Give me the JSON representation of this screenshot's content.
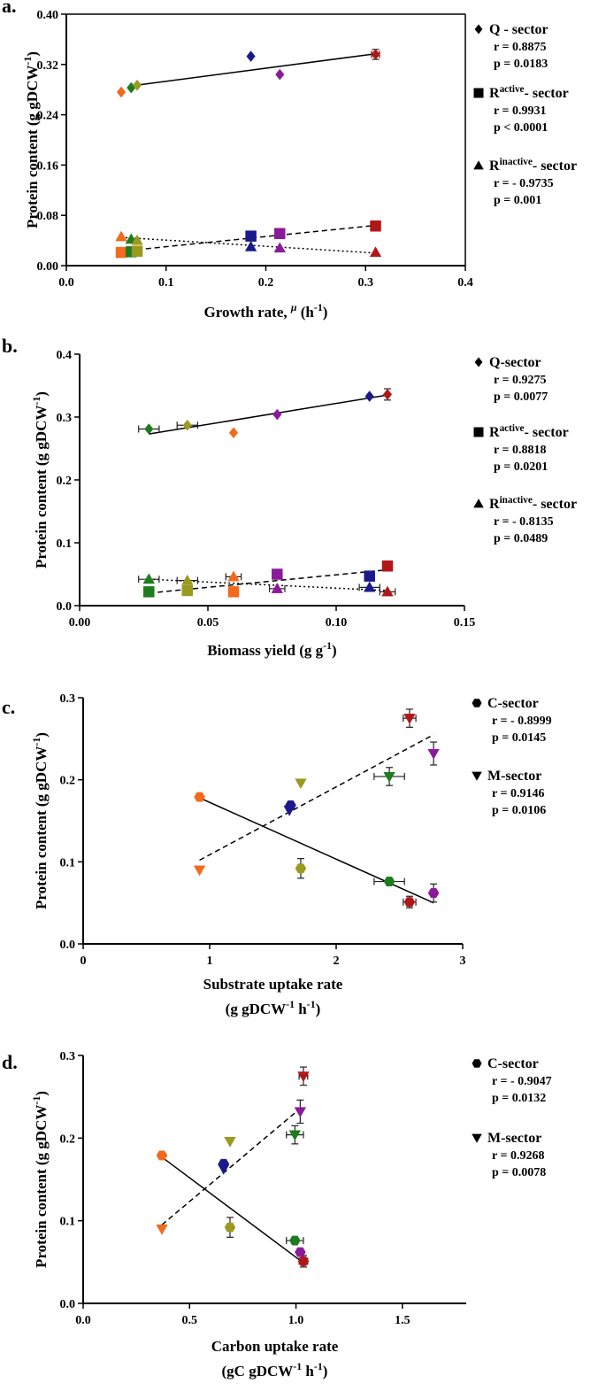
{
  "chart_data": [
    {
      "type": "scatter",
      "panel_label": "a.",
      "xlabel": "Growth rate, μ (h⁻¹)",
      "xlabel_parts": [
        "Growth rate, ",
        "μ",
        " (h",
        "-1",
        ")"
      ],
      "ylabel_parts": [
        "Protein content (g gDCW",
        "-1",
        ")"
      ],
      "xlim": [
        0,
        0.4
      ],
      "ylim": [
        0,
        0.4
      ],
      "xticks": [
        "0.0",
        "0.1",
        "0.2",
        "0.3",
        "0.4"
      ],
      "yticks": [
        "0.00",
        "0.08",
        "0.16",
        "0.24",
        "0.32",
        "0.40"
      ],
      "xtick_values": [
        0,
        0.1,
        0.2,
        0.3,
        0.4
      ],
      "ytick_values": [
        0,
        0.08,
        0.16,
        0.24,
        0.32,
        0.4
      ],
      "series": [
        {
          "name": "Q - sector",
          "marker": "diamond",
          "line": "solid",
          "fit": [
            [
              0.07,
              0.287
            ],
            [
              0.31,
              0.337
            ]
          ],
          "points": [
            {
              "x": 0.055,
              "y": 0.276,
              "color": "#F26A1B"
            },
            {
              "x": 0.065,
              "y": 0.283,
              "color": "#1E7B1E"
            },
            {
              "x": 0.071,
              "y": 0.287,
              "color": "#9A9A1E"
            },
            {
              "x": 0.185,
              "y": 0.333,
              "color": "#1A1A8C"
            },
            {
              "x": 0.214,
              "y": 0.304,
              "color": "#8B1A9A"
            },
            {
              "x": 0.31,
              "y": 0.336,
              "color": "#B01818",
              "xerr": 0.004,
              "yerr": 0.008
            }
          ]
        },
        {
          "name": "R - active sector",
          "marker": "square",
          "line": "dashed",
          "fit": [
            [
              0.062,
              0.024
            ],
            [
              0.31,
              0.064
            ]
          ],
          "points": [
            {
              "x": 0.055,
              "y": 0.021,
              "color": "#F26A1B"
            },
            {
              "x": 0.065,
              "y": 0.022,
              "color": "#1E7B1E"
            },
            {
              "x": 0.071,
              "y": 0.023,
              "color": "#9A9A1E"
            },
            {
              "x": 0.185,
              "y": 0.047,
              "color": "#1A1A8C"
            },
            {
              "x": 0.214,
              "y": 0.051,
              "color": "#8B1A9A"
            },
            {
              "x": 0.31,
              "y": 0.063,
              "color": "#B01818"
            }
          ]
        },
        {
          "name": "R - inactive sector",
          "marker": "triangle",
          "line": "dotted",
          "fit": [
            [
              0.055,
              0.045
            ],
            [
              0.31,
              0.02
            ]
          ],
          "points": [
            {
              "x": 0.055,
              "y": 0.046,
              "color": "#F26A1B"
            },
            {
              "x": 0.065,
              "y": 0.042,
              "color": "#1E7B1E"
            },
            {
              "x": 0.071,
              "y": 0.04,
              "color": "#9A9A1E"
            },
            {
              "x": 0.185,
              "y": 0.03,
              "color": "#1A1A8C"
            },
            {
              "x": 0.214,
              "y": 0.028,
              "color": "#8B1A9A"
            },
            {
              "x": 0.31,
              "y": 0.021,
              "color": "#B01818"
            }
          ]
        }
      ],
      "legend": [
        {
          "marker": "diamond",
          "name_parts": [
            "Q - sector"
          ],
          "r": "r = 0.8875",
          "p": "p = 0.0183"
        },
        {
          "marker": "square",
          "name_parts": [
            "R",
            "active",
            "- sector"
          ],
          "r": "r = 0.9931",
          "p": "p < 0.0001"
        },
        {
          "marker": "triangle",
          "name_parts": [
            "R",
            "inactive",
            "- sector"
          ],
          "r": "r = - 0.9735",
          "p": "p = 0.001"
        }
      ]
    },
    {
      "type": "scatter",
      "panel_label": "b.",
      "xlabel": "Biomass yield (g g⁻¹)",
      "xlabel_parts": [
        "Biomass yield (g g",
        "-1",
        ")"
      ],
      "ylabel_parts": [
        "Protein content (g gDCW",
        "-1",
        ")"
      ],
      "xlim": [
        0,
        0.15
      ],
      "ylim": [
        0,
        0.4
      ],
      "xticks": [
        "0.00",
        "0.05",
        "0.10",
        "0.15"
      ],
      "yticks": [
        "0.0",
        "0.1",
        "0.2",
        "0.3",
        "0.4"
      ],
      "xtick_values": [
        0,
        0.05,
        0.1,
        0.15
      ],
      "ytick_values": [
        0,
        0.1,
        0.2,
        0.3,
        0.4
      ],
      "series": [
        {
          "name": "Q-sector",
          "marker": "diamond",
          "line": "solid",
          "fit": [
            [
              0.027,
              0.273
            ],
            [
              0.12,
              0.335
            ]
          ],
          "points": [
            {
              "x": 0.027,
              "y": 0.281,
              "color": "#1E7B1E",
              "xerr": 0.004
            },
            {
              "x": 0.042,
              "y": 0.287,
              "color": "#9A9A1E",
              "xerr": 0.004
            },
            {
              "x": 0.06,
              "y": 0.275,
              "color": "#F26A1B"
            },
            {
              "x": 0.077,
              "y": 0.304,
              "color": "#8B1A9A"
            },
            {
              "x": 0.113,
              "y": 0.333,
              "color": "#1A1A8C"
            },
            {
              "x": 0.12,
              "y": 0.336,
              "color": "#B01818",
              "yerr": 0.009
            }
          ]
        },
        {
          "name": "R - active sector",
          "marker": "square",
          "line": "dashed",
          "fit": [
            [
              0.027,
              0.02
            ],
            [
              0.12,
              0.057
            ]
          ],
          "points": [
            {
              "x": 0.027,
              "y": 0.022,
              "color": "#1E7B1E"
            },
            {
              "x": 0.042,
              "y": 0.024,
              "color": "#9A9A1E"
            },
            {
              "x": 0.06,
              "y": 0.022,
              "color": "#F26A1B"
            },
            {
              "x": 0.077,
              "y": 0.05,
              "color": "#8B1A9A"
            },
            {
              "x": 0.113,
              "y": 0.047,
              "color": "#1A1A8C"
            },
            {
              "x": 0.12,
              "y": 0.063,
              "color": "#B01818"
            }
          ]
        },
        {
          "name": "R - inactive sector",
          "marker": "triangle",
          "line": "dotted",
          "fit": [
            [
              0.027,
              0.042
            ],
            [
              0.12,
              0.024
            ]
          ],
          "points": [
            {
              "x": 0.027,
              "y": 0.042,
              "color": "#1E7B1E",
              "xerr": 0.004
            },
            {
              "x": 0.042,
              "y": 0.04,
              "color": "#9A9A1E",
              "xerr": 0.004
            },
            {
              "x": 0.06,
              "y": 0.046,
              "color": "#F26A1B",
              "xerr": 0.003
            },
            {
              "x": 0.077,
              "y": 0.027,
              "color": "#8B1A9A",
              "xerr": 0.003
            },
            {
              "x": 0.113,
              "y": 0.029,
              "color": "#1A1A8C",
              "xerr": 0.004
            },
            {
              "x": 0.12,
              "y": 0.022,
              "color": "#B01818",
              "xerr": 0.003
            }
          ]
        }
      ],
      "legend": [
        {
          "marker": "diamond",
          "name_parts": [
            "Q-sector"
          ],
          "r": "r = 0.9275",
          "p": "p = 0.0077"
        },
        {
          "marker": "square",
          "name_parts": [
            "R",
            "active",
            "- sector"
          ],
          "r": "r = 0.8818",
          "p": "p = 0.0201"
        },
        {
          "marker": "triangle",
          "name_parts": [
            "R",
            "inactive",
            "- sector"
          ],
          "r": "r = - 0.8135",
          "p": "p = 0.0489"
        }
      ]
    },
    {
      "type": "scatter",
      "panel_label": "c.",
      "xlabel": "Substrate uptake rate (g gDCW⁻¹ h⁻¹)",
      "xlabel_parts": [
        "Substrate uptake rate"
      ],
      "xlabel2_parts": [
        "(g gDCW",
        "-1",
        " h",
        "-1",
        ")"
      ],
      "ylabel_parts": [
        "Protein content (g gDCW",
        "-1",
        ")"
      ],
      "xlim": [
        0,
        3
      ],
      "ylim": [
        0,
        0.3
      ],
      "xticks": [
        "0",
        "1",
        "2",
        "3"
      ],
      "yticks": [
        "0.0",
        "0.1",
        "0.2",
        "0.3"
      ],
      "xtick_values": [
        0,
        1,
        2,
        3
      ],
      "ytick_values": [
        0,
        0.1,
        0.2,
        0.3
      ],
      "series": [
        {
          "name": "C-sector",
          "marker": "hexagon",
          "line": "solid",
          "fit": [
            [
              0.92,
              0.178
            ],
            [
              2.77,
              0.05
            ]
          ],
          "points": [
            {
              "x": 0.92,
              "y": 0.179,
              "color": "#F26A1B"
            },
            {
              "x": 1.64,
              "y": 0.169,
              "color": "#1A1A8C"
            },
            {
              "x": 1.72,
              "y": 0.092,
              "color": "#9A9A1E",
              "yerr": 0.012
            },
            {
              "x": 2.42,
              "y": 0.076,
              "color": "#1E7B1E",
              "xerr": 0.12
            },
            {
              "x": 2.58,
              "y": 0.051,
              "color": "#B01818",
              "xerr": 0.05,
              "yerr": 0.007
            },
            {
              "x": 2.77,
              "y": 0.062,
              "color": "#8B1A9A",
              "yerr": 0.011
            }
          ]
        },
        {
          "name": "M-sector",
          "marker": "triangle-down",
          "line": "dashed",
          "fit": [
            [
              0.92,
              0.102
            ],
            [
              2.77,
              0.255
            ]
          ],
          "points": [
            {
              "x": 0.92,
              "y": 0.09,
              "color": "#F26A1B"
            },
            {
              "x": 1.63,
              "y": 0.163,
              "color": "#1A1A8C"
            },
            {
              "x": 1.72,
              "y": 0.196,
              "color": "#9A9A1E"
            },
            {
              "x": 2.42,
              "y": 0.204,
              "color": "#1E7B1E",
              "xerr": 0.12,
              "yerr": 0.011
            },
            {
              "x": 2.58,
              "y": 0.275,
              "color": "#B01818",
              "xerr": 0.05,
              "yerr": 0.011
            },
            {
              "x": 2.77,
              "y": 0.232,
              "color": "#8B1A9A",
              "yerr": 0.014
            }
          ]
        }
      ],
      "legend": [
        {
          "marker": "hexagon",
          "name_parts": [
            "C-sector"
          ],
          "r": "r = - 0.8999",
          "p": "p = 0.0145"
        },
        {
          "marker": "triangle-down",
          "name_parts": [
            "M-sector"
          ],
          "r": "r = 0.9146",
          "p": "p = 0.0106"
        }
      ]
    },
    {
      "type": "scatter",
      "panel_label": "d.",
      "xlabel": "Carbon uptake rate (gC gDCW⁻¹ h⁻¹)",
      "xlabel_parts": [
        "Carbon uptake rate"
      ],
      "xlabel2_parts": [
        "(gC gDCW",
        "-1",
        " h",
        "-1",
        ")"
      ],
      "ylabel_parts": [
        "Protein content (g gDCW",
        "-1",
        ")"
      ],
      "xlim": [
        0,
        1.8
      ],
      "ylim": [
        0,
        0.3
      ],
      "xticks": [
        "0.0",
        "0.5",
        "1.0",
        "1.5"
      ],
      "yticks": [
        "0.0",
        "0.1",
        "0.2",
        "0.3"
      ],
      "xtick_values": [
        0,
        0.5,
        1.0,
        1.5
      ],
      "ytick_values": [
        0,
        0.1,
        0.2,
        0.3
      ],
      "series": [
        {
          "name": "C-sector",
          "marker": "hexagon",
          "line": "solid",
          "fit": [
            [
              0.37,
              0.177
            ],
            [
              1.03,
              0.05
            ]
          ],
          "points": [
            {
              "x": 0.37,
              "y": 0.179,
              "color": "#F26A1B"
            },
            {
              "x": 0.66,
              "y": 0.169,
              "color": "#1A1A8C"
            },
            {
              "x": 0.69,
              "y": 0.092,
              "color": "#9A9A1E",
              "yerr": 0.012
            },
            {
              "x": 0.995,
              "y": 0.076,
              "color": "#1E7B1E",
              "xerr": 0.04
            },
            {
              "x": 1.035,
              "y": 0.051,
              "color": "#B01818",
              "xerr": 0.02,
              "yerr": 0.007
            },
            {
              "x": 1.02,
              "y": 0.062,
              "color": "#8B1A9A"
            }
          ]
        },
        {
          "name": "M-sector",
          "marker": "triangle-down",
          "line": "dashed",
          "fit": [
            [
              0.37,
              0.095
            ],
            [
              1.03,
              0.238
            ]
          ],
          "points": [
            {
              "x": 0.37,
              "y": 0.09,
              "color": "#F26A1B"
            },
            {
              "x": 0.66,
              "y": 0.163,
              "color": "#1A1A8C"
            },
            {
              "x": 0.69,
              "y": 0.196,
              "color": "#9A9A1E"
            },
            {
              "x": 0.995,
              "y": 0.204,
              "color": "#1E7B1E",
              "xerr": 0.04,
              "yerr": 0.011
            },
            {
              "x": 1.035,
              "y": 0.275,
              "color": "#B01818",
              "xerr": 0.02,
              "yerr": 0.011
            },
            {
              "x": 1.02,
              "y": 0.232,
              "color": "#8B1A9A",
              "yerr": 0.014
            }
          ]
        }
      ],
      "legend": [
        {
          "marker": "hexagon",
          "name_parts": [
            "C-sector"
          ],
          "r": "r = - 0.9047",
          "p": "p = 0.0132"
        },
        {
          "marker": "triangle-down",
          "name_parts": [
            "M-sector"
          ],
          "r": "r = 0.9268",
          "p": "p = 0.0078"
        }
      ]
    }
  ]
}
